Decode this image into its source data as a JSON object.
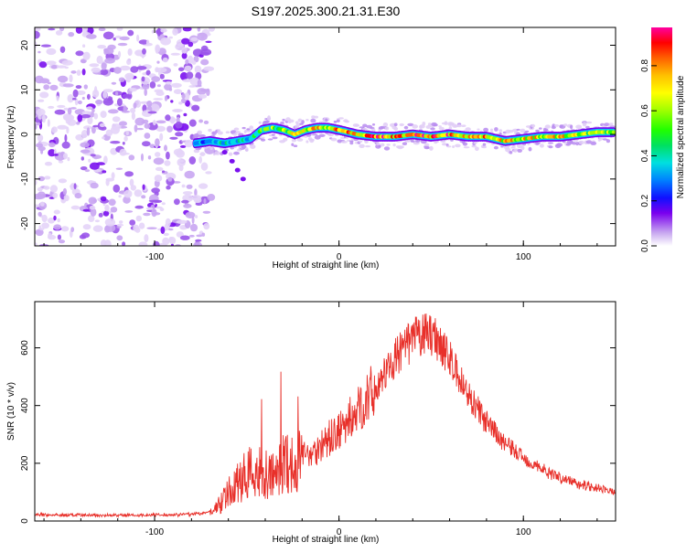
{
  "title": "S197.2025.300.21.31.E30",
  "colors": {
    "snr_line": "#e8302a",
    "axis": "#000000",
    "background": "#ffffff"
  },
  "chart_data": [
    {
      "type": "heatmap",
      "name": "spectrogram",
      "xlabel": "Height of straight line (km)",
      "ylabel": "Frequency (Hz)",
      "xlim": [
        -165,
        150
      ],
      "ylim": [
        -25,
        24
      ],
      "xticks": [
        -100,
        0,
        100
      ],
      "xtick_labels": [
        "-100",
        "0",
        "100"
      ],
      "yticks": [
        -20,
        -10,
        0,
        10,
        20
      ],
      "ytick_labels": [
        "-20",
        "-10",
        "0",
        "10",
        "20"
      ],
      "noise_region_x": [
        -165,
        -75
      ],
      "ridge": {
        "x": [
          -78,
          -70,
          -62,
          -55,
          -48,
          -42,
          -36,
          -30,
          -24,
          -18,
          -12,
          -6,
          0,
          10,
          20,
          30,
          40,
          50,
          60,
          70,
          80,
          90,
          100,
          110,
          120,
          130,
          140,
          148
        ],
        "freq": [
          -2,
          -1.5,
          -2,
          -1.5,
          -1,
          1,
          1.5,
          1,
          0,
          1,
          1.5,
          1.5,
          1,
          0,
          -0.5,
          -0.5,
          0,
          -0.5,
          0,
          -0.5,
          -0.5,
          -1.5,
          -1,
          -0.5,
          -0.5,
          0,
          0.5,
          0.5
        ],
        "amplitude": [
          0.3,
          0.35,
          0.4,
          0.45,
          0.5,
          0.55,
          0.65,
          0.7,
          0.75,
          0.8,
          0.85,
          0.9,
          0.95,
          0.95,
          0.95,
          0.95,
          0.95,
          0.95,
          0.95,
          0.9,
          0.9,
          0.85,
          0.85,
          0.8,
          0.8,
          0.75,
          0.7,
          0.65
        ]
      },
      "colorbar": {
        "label": "Normalized spectral amplitude",
        "range": [
          0,
          0.97
        ],
        "ticks": [
          0.0,
          0.2,
          0.4,
          0.6,
          0.8
        ],
        "tick_labels": [
          "0.0",
          "0.2",
          "0.4",
          "0.6",
          "0.8"
        ]
      }
    },
    {
      "type": "line",
      "name": "snr",
      "xlabel": "Height of straight line (km)",
      "ylabel": "SNR (10 * v/v)",
      "xlim": [
        -165,
        150
      ],
      "ylim": [
        0,
        760
      ],
      "xticks": [
        -100,
        0,
        100
      ],
      "xtick_labels": [
        "-100",
        "0",
        "100"
      ],
      "yticks": [
        0,
        200,
        400,
        600
      ],
      "ytick_labels": [
        "0",
        "200",
        "400",
        "600"
      ],
      "series": [
        {
          "name": "SNR",
          "x": [
            -165,
            -140,
            -110,
            -90,
            -75,
            -68,
            -62,
            -55,
            -48,
            -42,
            -36,
            -30,
            -24,
            -18,
            -12,
            -6,
            0,
            10,
            20,
            30,
            40,
            45,
            50,
            55,
            60,
            70,
            80,
            90,
            100,
            110,
            120,
            130,
            140,
            150
          ],
          "y": [
            22,
            20,
            20,
            22,
            25,
            35,
            80,
            130,
            180,
            160,
            150,
            200,
            210,
            230,
            250,
            280,
            310,
            380,
            460,
            560,
            630,
            645,
            650,
            620,
            560,
            440,
            340,
            270,
            220,
            180,
            150,
            130,
            115,
            100
          ]
        }
      ]
    }
  ]
}
